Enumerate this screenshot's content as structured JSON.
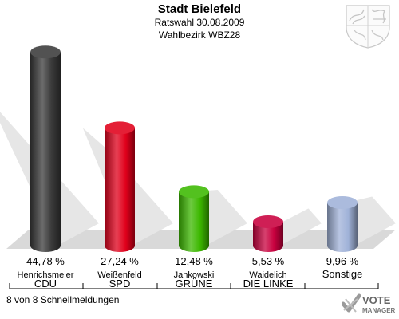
{
  "header": {
    "title": "Stadt Bielefeld",
    "subtitle1": "Ratswahl 30.08.2009",
    "subtitle2": "Wahlbezirk WBZ28"
  },
  "footer": {
    "status": "8 von 8 Schnellmeldungen"
  },
  "logo": {
    "line1": "VOTE",
    "line2": "MANAGER"
  },
  "chart_data": {
    "type": "bar",
    "categories": [
      "CDU",
      "SPD",
      "GRÜNE",
      "DIE LINKE",
      "Sonstige"
    ],
    "candidates": [
      "Henrichsmeier",
      "Weißenfeld",
      "Jankowski",
      "Waidelich",
      ""
    ],
    "values": [
      44.78,
      27.24,
      12.48,
      5.53,
      9.96
    ],
    "value_labels": [
      "44,78 %",
      "27,24 %",
      "12,48 %",
      "5,53 %",
      "9,96 %"
    ],
    "colors": [
      "#3a3a3a",
      "#e0001b",
      "#3cb800",
      "#c8003e",
      "#a0b2d8"
    ],
    "ylim": [
      0,
      50
    ]
  }
}
